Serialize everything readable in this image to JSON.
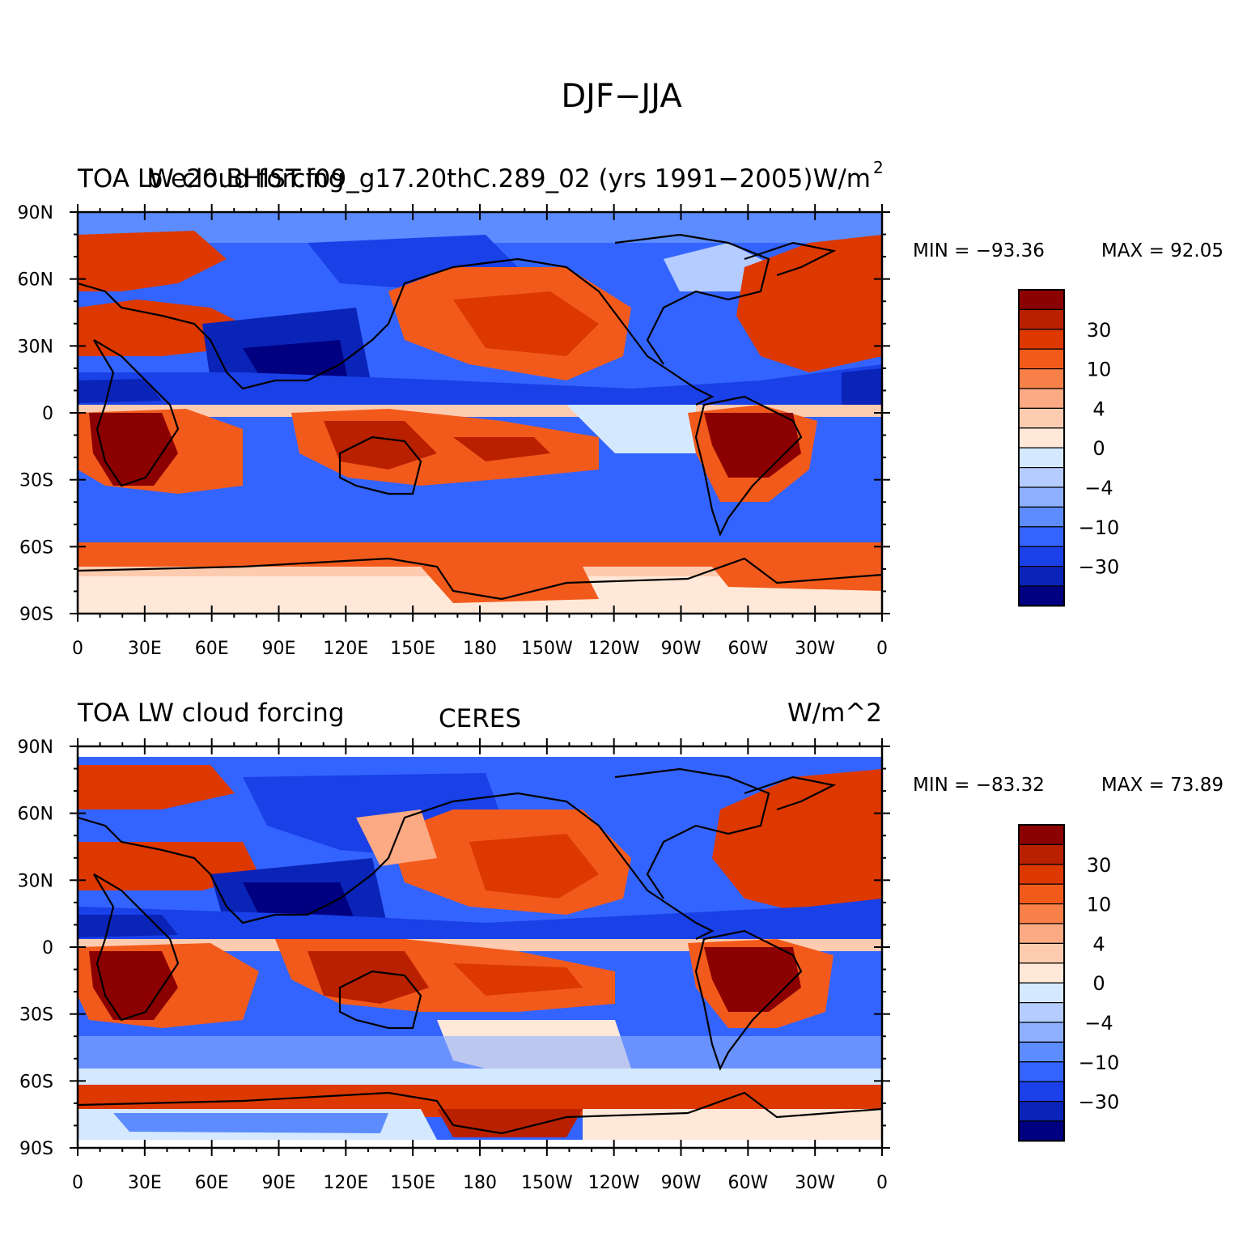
{
  "figure_title": "DJF−JJA",
  "lat_labels": [
    "90N",
    "60N",
    "30N",
    "0",
    "30S",
    "60S",
    "90S"
  ],
  "lon_labels": [
    "0",
    "30E",
    "60E",
    "90E",
    "120E",
    "150E",
    "180",
    "150W",
    "120W",
    "90W",
    "60W",
    "30W",
    "0"
  ],
  "colorbar": {
    "colors": [
      "#8b0000",
      "#b82000",
      "#dc3800",
      "#f25a1c",
      "#f98048",
      "#fcaa84",
      "#fdccb0",
      "#ffe8d8",
      "#d4e8ff",
      "#b4ccff",
      "#8fb0ff",
      "#5c8cff",
      "#3464ff",
      "#1a40e8",
      "#0a24b8",
      "#000080"
    ],
    "labels": [
      "30",
      "10",
      "4",
      "0",
      "−4",
      "−10",
      "−30"
    ]
  },
  "panels": [
    {
      "left_title": "TOA LW cloud forcing",
      "center_title": "b.e20.BHIST.f09_g17.20thC.289_02 (yrs 1991−2005)",
      "right_title": "W/m",
      "right_title_sup": "2",
      "min_label": "MIN = −93.36",
      "max_label": "MAX = 92.05"
    },
    {
      "left_title": "TOA LW cloud forcing",
      "center_title": "CERES",
      "right_title": "W/m^2",
      "right_title_sup": "",
      "min_label": "MIN = −83.32",
      "max_label": "MAX = 73.89"
    }
  ]
}
